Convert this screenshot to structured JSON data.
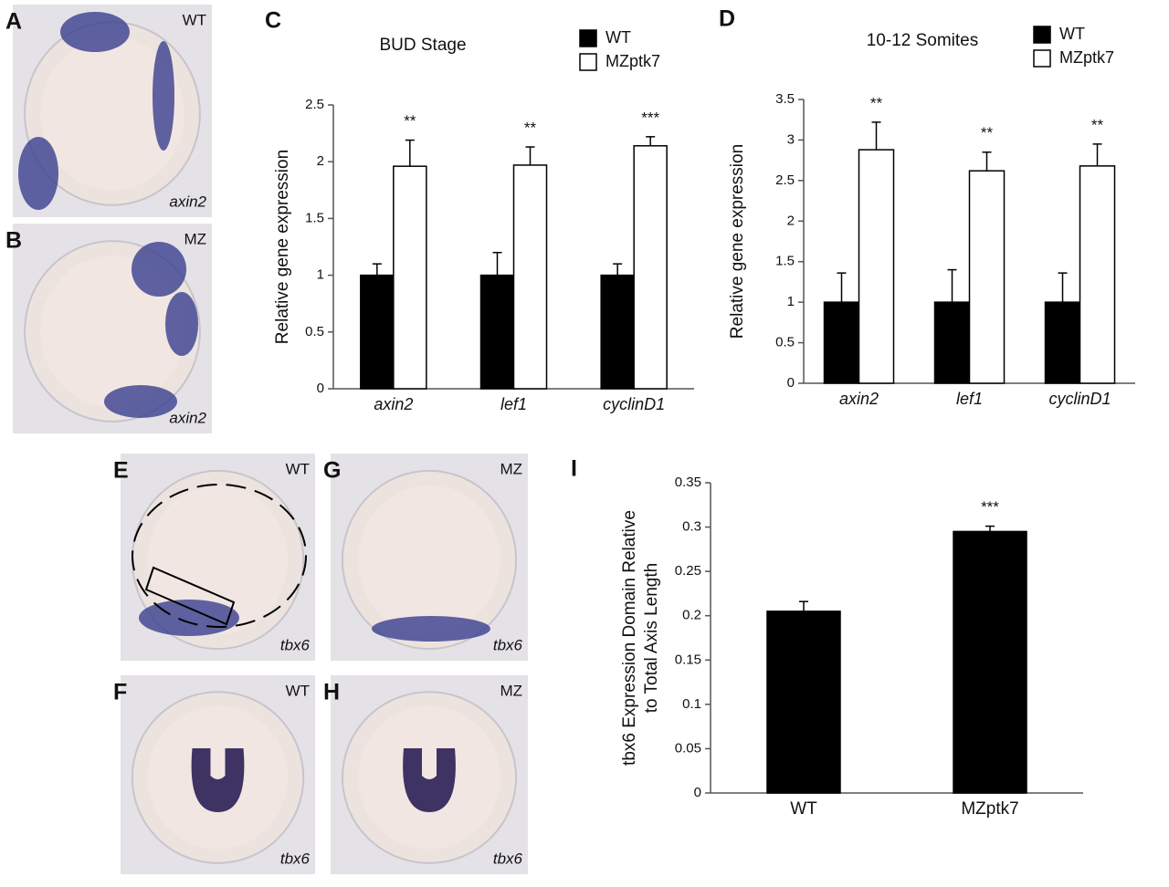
{
  "image_panels": [
    {
      "label": "A",
      "genotype": "WT",
      "gene": "axin2"
    },
    {
      "label": "B",
      "genotype": "MZ",
      "gene": "axin2"
    },
    {
      "label": "E",
      "genotype": "WT",
      "gene": "tbx6"
    },
    {
      "label": "G",
      "genotype": "MZ",
      "gene": "tbx6"
    },
    {
      "label": "F",
      "genotype": "WT",
      "gene": "tbx6"
    },
    {
      "label": "H",
      "genotype": "MZ",
      "gene": "tbx6"
    }
  ],
  "chart_data": [
    {
      "type": "bar",
      "panel": "C",
      "title": "BUD Stage",
      "y_label": "Relative gene expression",
      "categories": [
        "axin2",
        "lef1",
        "cyclinD1"
      ],
      "series": [
        {
          "name": "WT",
          "color": "#000000",
          "values": [
            1,
            1,
            1
          ],
          "errors": [
            0.1,
            0.2,
            0.1
          ]
        },
        {
          "name": "MZptk7",
          "color": "#ffffff",
          "values": [
            1.96,
            1.97,
            2.14
          ],
          "errors": [
            0.23,
            0.16,
            0.08
          ]
        }
      ],
      "significance": [
        "**",
        "**",
        "***"
      ],
      "ylim": [
        0,
        2.5
      ],
      "yticks": [
        0,
        0.5,
        1,
        1.5,
        2,
        2.5
      ],
      "legend": "top-right"
    },
    {
      "type": "bar",
      "panel": "D",
      "title": "10-12 Somites",
      "y_label": "Relative gene expression",
      "categories": [
        "axin2",
        "lef1",
        "cyclinD1"
      ],
      "series": [
        {
          "name": "WT",
          "color": "#000000",
          "values": [
            1,
            1,
            1
          ],
          "errors": [
            0.36,
            0.4,
            0.36
          ]
        },
        {
          "name": "MZptk7",
          "color": "#ffffff",
          "values": [
            2.88,
            2.62,
            2.68
          ],
          "errors": [
            0.34,
            0.23,
            0.27
          ]
        }
      ],
      "significance": [
        "**",
        "**",
        "**"
      ],
      "ylim": [
        0,
        3.5
      ],
      "yticks": [
        0,
        0.5,
        1,
        1.5,
        2,
        2.5,
        3,
        3.5
      ],
      "legend": "top-right"
    },
    {
      "type": "bar",
      "panel": "I",
      "y_label": [
        "tbx6 Expression Domain Relative",
        "to Total Axis Length"
      ],
      "categories": [
        "WT",
        "MZptk7"
      ],
      "color": "#000000",
      "values": [
        0.205,
        0.295
      ],
      "errors": [
        0.011,
        0.006
      ],
      "significance": [
        null,
        "***"
      ],
      "ylim": [
        0,
        0.35
      ],
      "yticks": [
        0,
        0.05,
        0.1,
        0.15,
        0.2,
        0.25,
        0.3,
        0.35
      ]
    }
  ]
}
